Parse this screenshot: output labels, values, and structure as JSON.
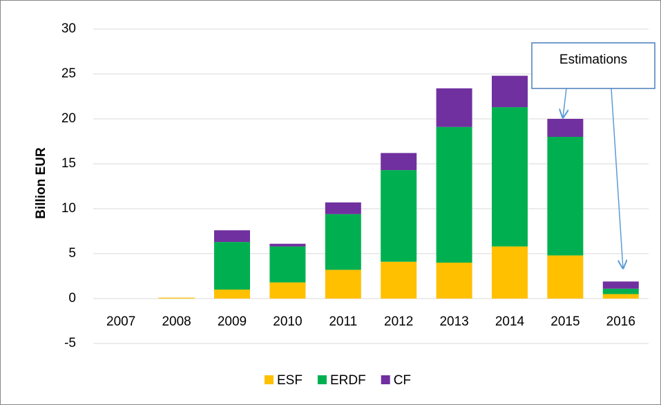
{
  "chart_data": {
    "type": "stacked_bar",
    "ylabel": "Billion EUR",
    "categories": [
      "2007",
      "2008",
      "2009",
      "2010",
      "2011",
      "2012",
      "2013",
      "2014",
      "2015",
      "2016"
    ],
    "series": [
      {
        "name": "ESF",
        "color": "#FFC000",
        "values": [
          0,
          0.1,
          1.0,
          1.8,
          3.2,
          4.1,
          4.0,
          5.8,
          4.8,
          0.5
        ]
      },
      {
        "name": "ERDF",
        "color": "#00B050",
        "values": [
          0,
          0,
          5.3,
          4.0,
          6.2,
          10.2,
          15.1,
          15.5,
          13.2,
          0.6
        ]
      },
      {
        "name": "CF",
        "color": "#7030A0",
        "values": [
          0,
          0,
          1.3,
          0.3,
          1.3,
          1.9,
          4.3,
          3.5,
          2.0,
          0.8
        ]
      }
    ],
    "ylim": [
      -5,
      30
    ],
    "yticks": [
      -5,
      0,
      5,
      10,
      15,
      20,
      25,
      30
    ],
    "grid": true,
    "legend": "bottom",
    "annotation": "Estimations"
  }
}
